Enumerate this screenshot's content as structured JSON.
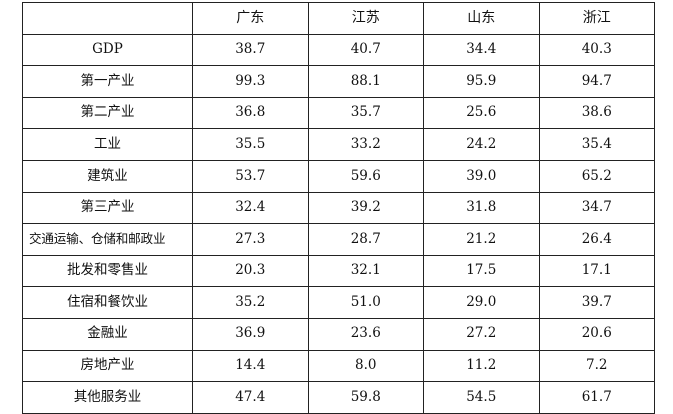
{
  "table": {
    "corner": "",
    "columns": [
      "广东",
      "江苏",
      "山东",
      "浙江"
    ],
    "rows": [
      {
        "label": "GDP",
        "values": [
          "38.7",
          "40.7",
          "34.4",
          "40.3"
        ]
      },
      {
        "label": "第一产业",
        "values": [
          "99.3",
          "88.1",
          "95.9",
          "94.7"
        ]
      },
      {
        "label": "第二产业",
        "values": [
          "36.8",
          "35.7",
          "25.6",
          "38.6"
        ]
      },
      {
        "label": "工业",
        "values": [
          "35.5",
          "33.2",
          "24.2",
          "35.4"
        ]
      },
      {
        "label": "建筑业",
        "values": [
          "53.7",
          "59.6",
          "39.0",
          "65.2"
        ]
      },
      {
        "label": "第三产业",
        "values": [
          "32.4",
          "39.2",
          "31.8",
          "34.7"
        ]
      },
      {
        "label": "交通运输、仓储和邮政业",
        "values": [
          "27.3",
          "28.7",
          "21.2",
          "26.4"
        ]
      },
      {
        "label": "批发和零售业",
        "values": [
          "20.3",
          "32.1",
          "17.5",
          "17.1"
        ]
      },
      {
        "label": "住宿和餐饮业",
        "values": [
          "35.2",
          "51.0",
          "29.0",
          "39.7"
        ]
      },
      {
        "label": "金融业",
        "values": [
          "36.9",
          "23.6",
          "27.2",
          "20.6"
        ]
      },
      {
        "label": "房地产业",
        "values": [
          "14.4",
          "8.0",
          "11.2",
          "7.2"
        ]
      },
      {
        "label": "其他服务业",
        "values": [
          "47.4",
          "59.8",
          "54.5",
          "61.7"
        ]
      }
    ]
  }
}
